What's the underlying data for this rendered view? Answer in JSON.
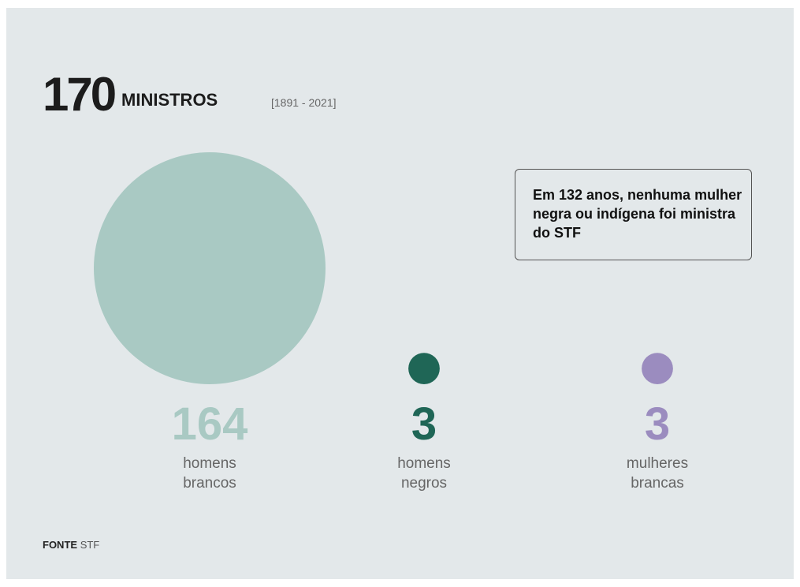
{
  "headline": {
    "number": "170",
    "word": "MINISTROS",
    "years": "[1891 - 2021]"
  },
  "callout": "Em 132 anos, nenhuma mulher negra ou indígena foi ministra do STF",
  "source": {
    "label": "FONTE",
    "value": "STF"
  },
  "chart_data": {
    "type": "bubble",
    "categories": [
      "homens brancos",
      "homens negros",
      "mulheres brancas"
    ],
    "values": [
      164,
      3,
      3
    ],
    "labels": [
      [
        "homens",
        "brancos"
      ],
      [
        "homens",
        "negros"
      ],
      [
        "mulheres",
        "brancas"
      ]
    ],
    "colors": [
      "#a9c9c3",
      "#1f6656",
      "#9b8cbf"
    ],
    "label_color": "#666666"
  }
}
